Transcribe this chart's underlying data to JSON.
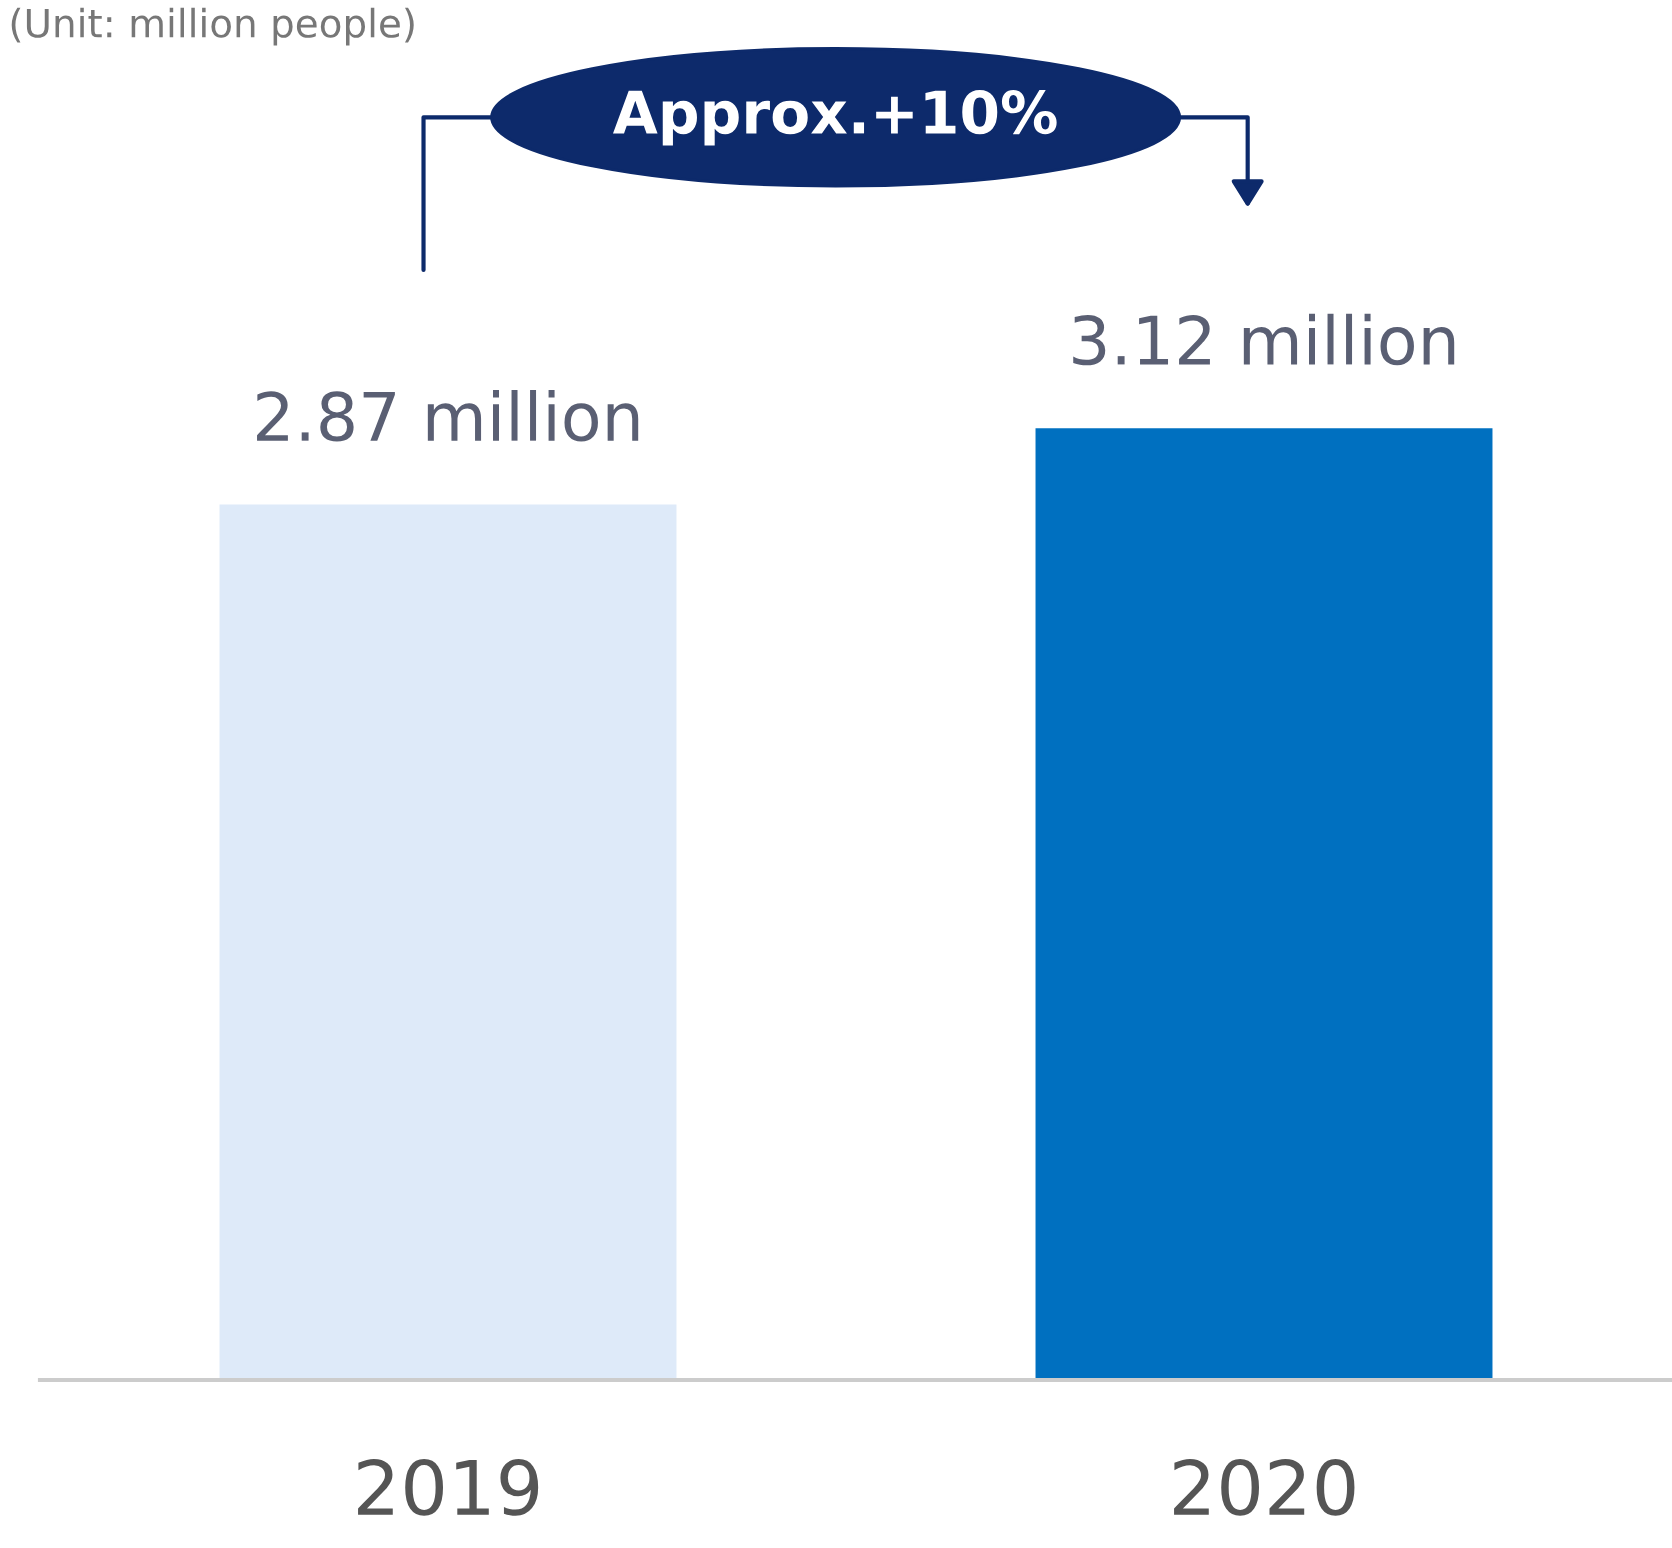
{
  "chart_data": {
    "type": "bar",
    "subtitle": "(Unit: million people)",
    "categories": [
      "2019",
      "2020"
    ],
    "values": [
      2.87,
      3.12
    ],
    "colors": [
      "#deeaf9",
      "#0070c0"
    ],
    "value_labels": [
      "2.87 million",
      "3.12 million"
    ],
    "annotations": [
      "Approx.+10%"
    ],
    "grid": false,
    "legend": false
  }
}
